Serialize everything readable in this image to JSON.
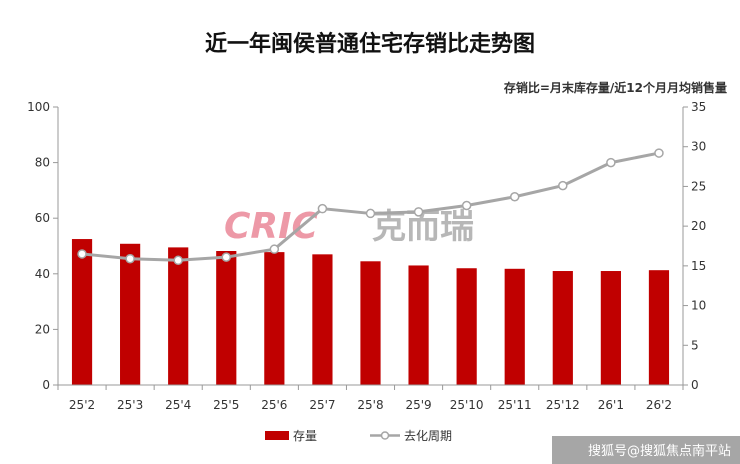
{
  "chart_data": {
    "type": "bar+line",
    "title": "近一年闽侯普通住宅存销比走势图",
    "subtitle": "存销比=月末库存量/近12个月月均销售量",
    "categories": [
      "25'2",
      "25'3",
      "25'4",
      "25'5",
      "25'6",
      "25'7",
      "25'8",
      "25'9",
      "25'10",
      "25'11",
      "25'12",
      "26'1",
      "26'2"
    ],
    "series": [
      {
        "name": "存量",
        "type": "bar",
        "axis": "left",
        "color": "#C00000",
        "values": [
          52.5,
          50.8,
          49.5,
          48.2,
          47.8,
          47.0,
          44.5,
          43.0,
          42.0,
          41.8,
          41.0,
          41.0,
          41.3
        ]
      },
      {
        "name": "去化周期",
        "type": "line",
        "axis": "right",
        "color": "#A6A6A6",
        "values": [
          16.5,
          15.9,
          15.7,
          16.1,
          17.1,
          22.2,
          21.6,
          21.8,
          22.6,
          23.7,
          25.1,
          28.0,
          29.2
        ]
      }
    ],
    "y_left": {
      "range": [
        0,
        100
      ],
      "ticks": [
        0,
        20,
        40,
        60,
        80,
        100
      ]
    },
    "y_right": {
      "range": [
        0,
        35
      ],
      "ticks": [
        0,
        5,
        10,
        15,
        20,
        25,
        30,
        35
      ]
    },
    "legend": {
      "placement": "bottom"
    }
  },
  "watermark": {
    "brand_latin": "CRIC",
    "brand_cn": "克而瑞",
    "color": "#E8788A"
  },
  "footer": {
    "text": "搜狐号@搜狐焦点南平站"
  }
}
